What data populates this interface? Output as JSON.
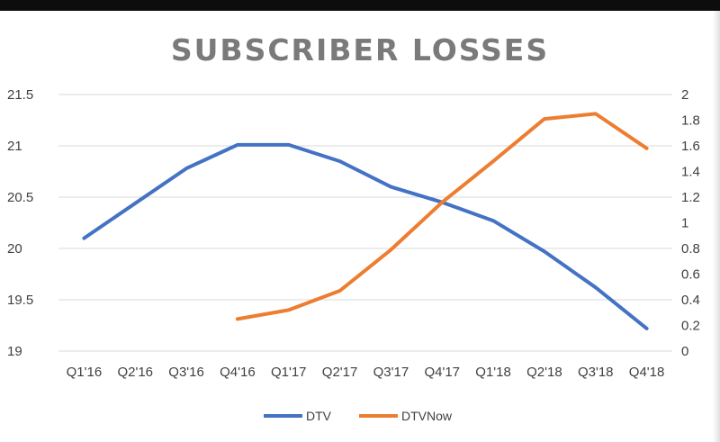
{
  "chart_data": {
    "type": "line",
    "title": "SUBSCRIBER LOSSES",
    "categories": [
      "Q1'16",
      "Q2'16",
      "Q3'16",
      "Q4'16",
      "Q1'17",
      "Q2'17",
      "Q3'17",
      "Q4'17",
      "Q1'18",
      "Q2'18",
      "Q3'18",
      "Q4'18"
    ],
    "y_left": {
      "ylim": [
        19,
        21.5
      ],
      "ticks": [
        "19",
        "19.5",
        "20",
        "20.5",
        "21",
        "21.5"
      ]
    },
    "y_right": {
      "ylim": [
        0,
        2
      ],
      "ticks": [
        "0",
        "0.2",
        "0.4",
        "0.6",
        "0.8",
        "1",
        "1.2",
        "1.4",
        "1.6",
        "1.8",
        "2"
      ]
    },
    "series": [
      {
        "name": "DTV",
        "axis": "left",
        "color": "#4472c4",
        "values": [
          20.1,
          20.44,
          20.78,
          21.01,
          21.01,
          20.85,
          20.6,
          20.45,
          20.27,
          19.97,
          19.62,
          19.22
        ]
      },
      {
        "name": "DTVNow",
        "axis": "right",
        "color": "#ed7d31",
        "values": [
          null,
          null,
          null,
          0.25,
          0.32,
          0.47,
          0.79,
          1.16,
          1.48,
          1.81,
          1.85,
          1.58
        ]
      }
    ],
    "grid": true,
    "legend": "bottom"
  }
}
